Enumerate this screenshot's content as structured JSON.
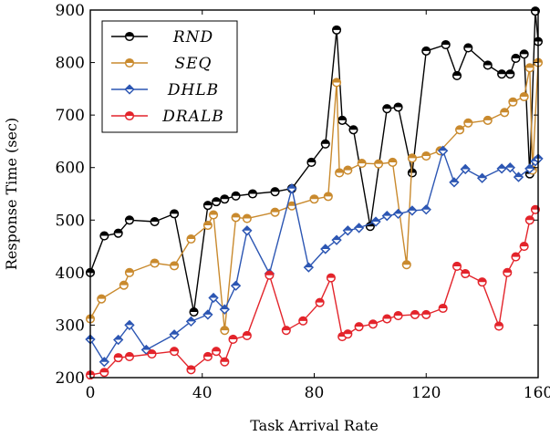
{
  "chart_data": {
    "type": "line",
    "xlabel": "Task Arrival Rate",
    "ylabel": "Response Time (sec)",
    "xlim": [
      0,
      160
    ],
    "ylim": [
      200,
      900
    ],
    "xticks": [
      0,
      40,
      80,
      120,
      160
    ],
    "yticks": [
      200,
      300,
      400,
      500,
      600,
      700,
      800,
      900
    ],
    "grid": false,
    "legend_position": "top-left",
    "series": [
      {
        "name": "RND",
        "color": "#000000",
        "marker": "circle-half",
        "x": [
          0,
          5,
          10,
          14,
          23,
          30,
          37,
          42,
          45,
          48,
          52,
          58,
          66,
          72,
          79,
          84,
          88,
          90,
          94,
          100,
          106,
          110,
          115,
          120,
          127,
          131,
          135,
          142,
          147,
          150,
          152,
          155,
          157,
          159,
          160
        ],
        "y": [
          400,
          470,
          475,
          500,
          497,
          512,
          325,
          528,
          535,
          540,
          546,
          550,
          554,
          560,
          610,
          645,
          862,
          690,
          672,
          488,
          712,
          715,
          590,
          822,
          834,
          775,
          828,
          795,
          778,
          778,
          808,
          816,
          588,
          898,
          840
        ]
      },
      {
        "name": "SEQ",
        "color": "#c98a2e",
        "marker": "circle-half",
        "x": [
          0,
          4,
          12,
          14,
          23,
          30,
          36,
          42,
          44,
          48,
          52,
          56,
          66,
          72,
          80,
          85,
          88,
          89,
          92,
          97,
          103,
          108,
          113,
          115,
          120,
          125,
          132,
          135,
          142,
          148,
          151,
          155,
          157,
          158,
          160
        ],
        "y": [
          312,
          350,
          376,
          400,
          418,
          413,
          464,
          490,
          510,
          290,
          505,
          503,
          515,
          527,
          540,
          545,
          762,
          590,
          595,
          608,
          607,
          610,
          415,
          618,
          622,
          632,
          672,
          685,
          690,
          705,
          725,
          735,
          790,
          595,
          800
        ]
      },
      {
        "name": "DHLB",
        "color": "#2c56b3",
        "marker": "diamond",
        "x": [
          0,
          5,
          10,
          14,
          20,
          30,
          36,
          42,
          44,
          48,
          52,
          56,
          64,
          72,
          78,
          84,
          88,
          92,
          96,
          102,
          106,
          110,
          115,
          120,
          126,
          130,
          134,
          140,
          147,
          150,
          153,
          157,
          159,
          160
        ],
        "y": [
          273,
          230,
          272,
          300,
          253,
          282,
          307,
          320,
          352,
          330,
          375,
          480,
          398,
          560,
          410,
          445,
          462,
          480,
          485,
          497,
          508,
          512,
          518,
          520,
          632,
          572,
          597,
          580,
          598,
          600,
          582,
          598,
          612,
          617
        ]
      },
      {
        "name": "DRALB",
        "color": "#e3242b",
        "marker": "circle-half",
        "x": [
          0,
          5,
          10,
          14,
          22,
          30,
          36,
          42,
          45,
          48,
          51,
          56,
          64,
          70,
          76,
          82,
          86,
          90,
          92,
          96,
          101,
          106,
          110,
          116,
          120,
          126,
          131,
          134,
          140,
          146,
          149,
          152,
          155,
          157,
          159
        ],
        "y": [
          205,
          210,
          238,
          240,
          245,
          250,
          215,
          240,
          250,
          230,
          273,
          280,
          395,
          290,
          308,
          343,
          390,
          278,
          283,
          297,
          302,
          312,
          318,
          320,
          320,
          332,
          412,
          398,
          382,
          298,
          400,
          430,
          450,
          500,
          520
        ]
      }
    ]
  }
}
